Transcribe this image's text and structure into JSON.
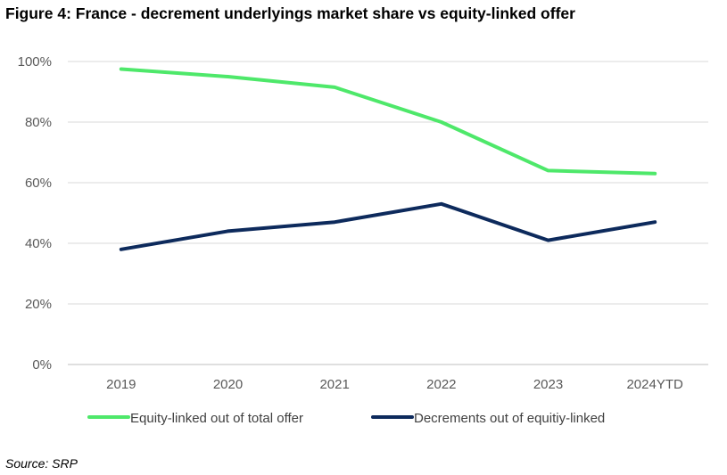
{
  "figure": {
    "title": "Figure 4: France - decrement underlyings market share vs equity-linked offer",
    "source": "Source: SRP"
  },
  "chart_data": {
    "type": "line",
    "title": "Figure 4: France - decrement underlyings market share vs equity-linked offer",
    "categories": [
      "2019",
      "2020",
      "2021",
      "2022",
      "2023",
      "2024YTD"
    ],
    "y_ticks": [
      0,
      20,
      40,
      60,
      80,
      100
    ],
    "y_tick_labels": [
      "0%",
      "20%",
      "40%",
      "60%",
      "80%",
      "100%"
    ],
    "ylim": [
      0,
      100
    ],
    "xlabel": "",
    "ylabel": "",
    "grid": true,
    "legend_position": "bottom",
    "series": [
      {
        "name": "Equity-linked out of total offer",
        "color": "#4ee86a",
        "values": [
          97.5,
          95,
          91.5,
          80,
          64,
          63
        ]
      },
      {
        "name": "Decrements out of equitiy-linked",
        "color": "#0d2a5c",
        "values": [
          38,
          44,
          47,
          53,
          41,
          47
        ]
      }
    ]
  }
}
